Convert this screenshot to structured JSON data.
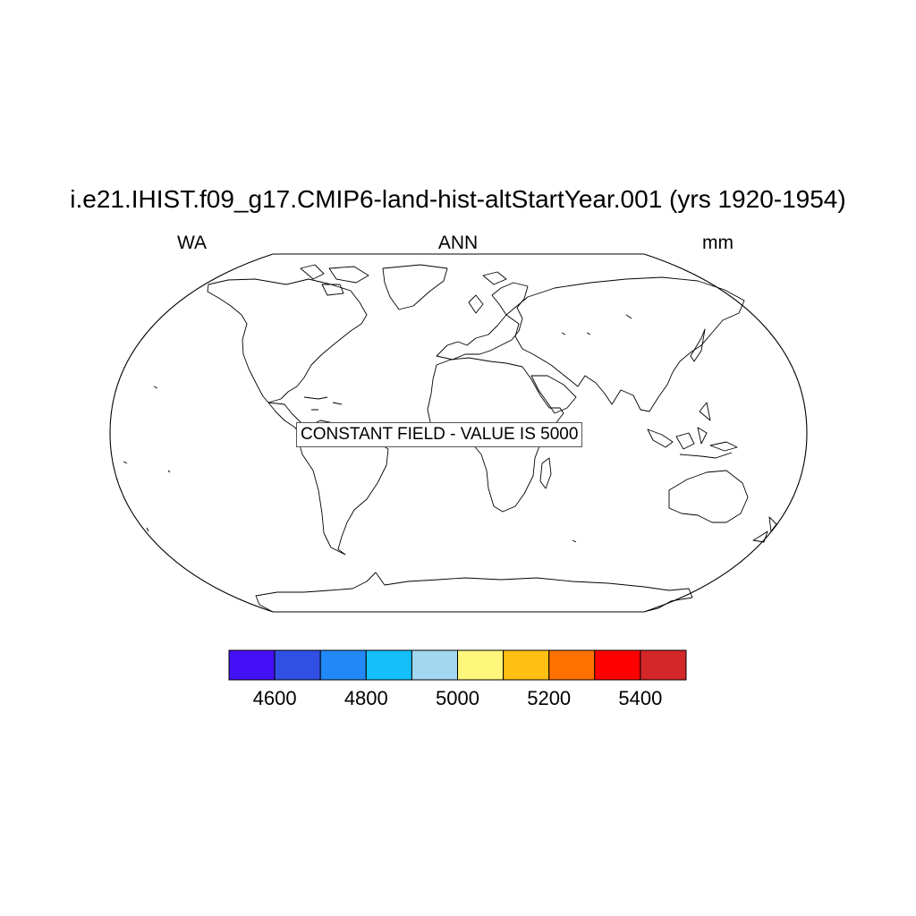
{
  "plot": {
    "title": "i.e21.IHIST.f09_g17.CMIP6-land-hist-altStartYear.001 (yrs 1920-1954)",
    "left_string": "WA",
    "center_string": "ANN",
    "right_string": "mm",
    "notice": "CONSTANT FIELD - VALUE IS 5000"
  },
  "map": {
    "projection": "Robinson",
    "field_value": 5000,
    "land_outline_color": "#000000",
    "fill_color": "#ffffff"
  },
  "colorbar": {
    "colors": [
      "#4410f5",
      "#3050e3",
      "#2388f7",
      "#15bffa",
      "#a3d6ef",
      "#fff67c",
      "#ffc012",
      "#ff7200",
      "#ff0000",
      "#d42727"
    ],
    "levels": [
      4600,
      4700,
      4800,
      4900,
      5000,
      5100,
      5200,
      5300,
      5400
    ],
    "labels": [
      "4600",
      "4800",
      "5000",
      "5200",
      "5400"
    ]
  }
}
